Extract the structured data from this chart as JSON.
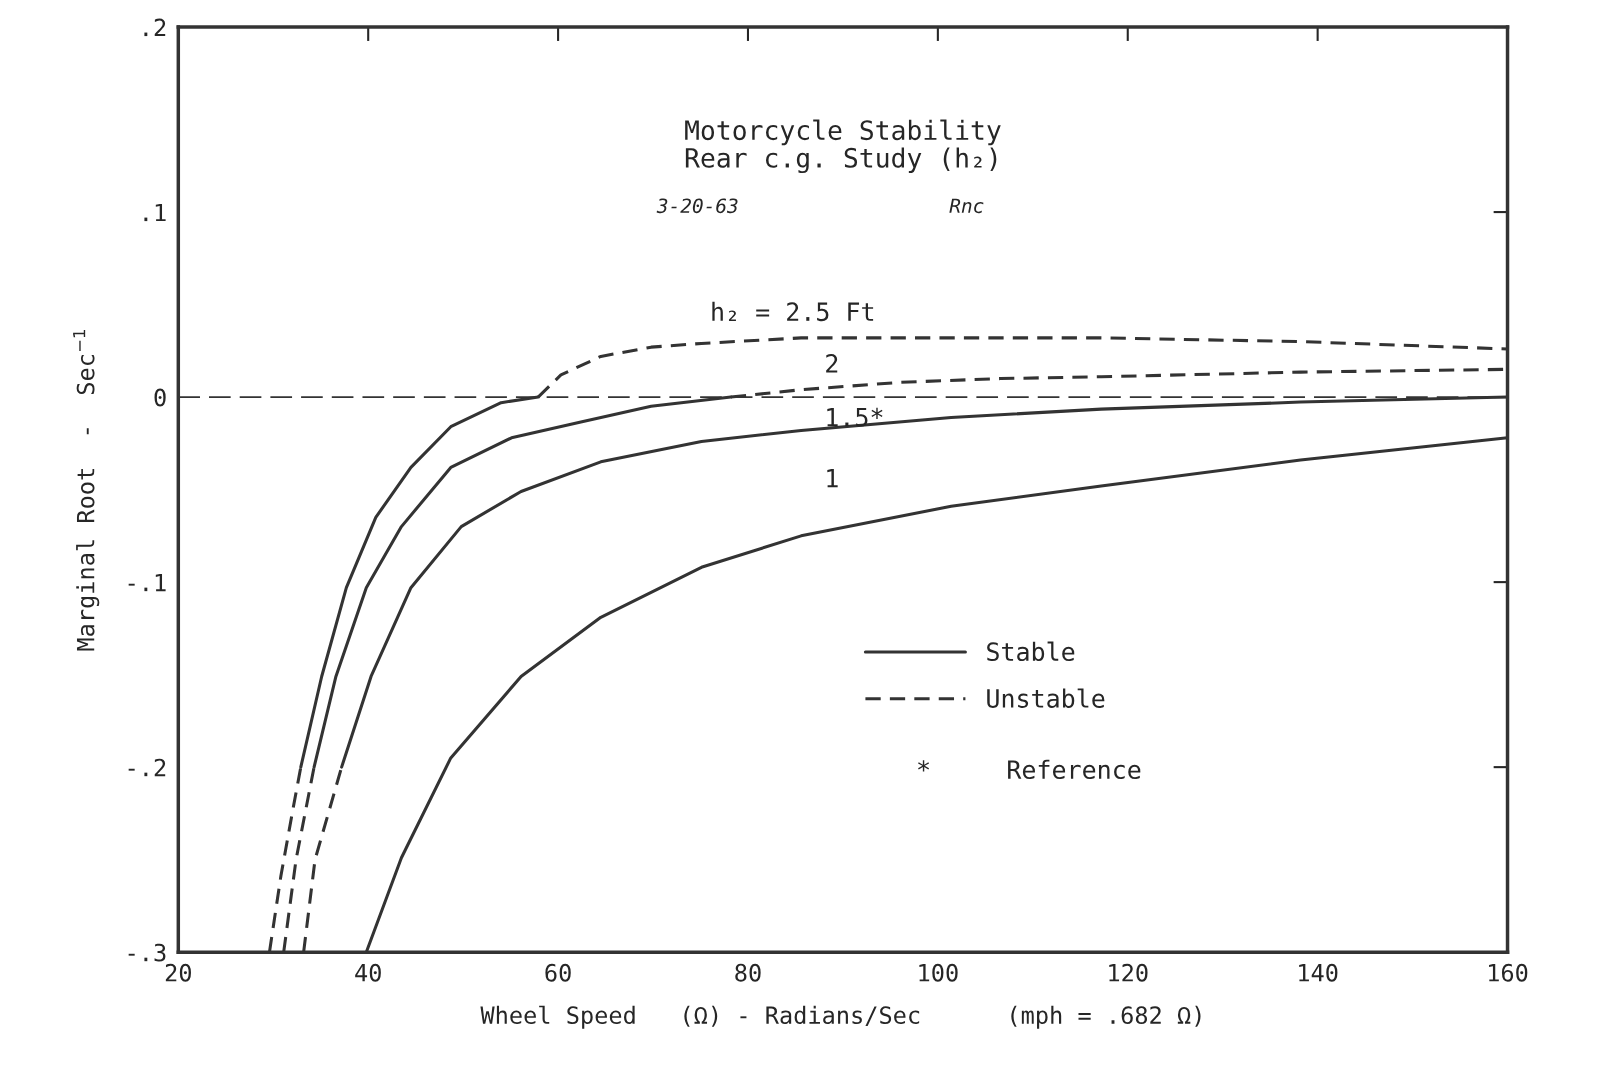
{
  "chart_data": {
    "type": "line",
    "title": "Motorcycle Stability\nRear c.g. Study (h₂)",
    "xlabel": "Wheel Speed   (Ω) - Radians/Sec      (mph = .682 Ω)",
    "ylabel": "Marginal Root  -  Sec$^{−1}$",
    "xlim": [
      20,
      160
    ],
    "ylim": [
      -0.3,
      0.2
    ],
    "xticks": [
      20,
      40,
      60,
      80,
      100,
      120,
      140,
      160
    ],
    "yticks": [
      {
        "value": -0.3,
        "label": "-.3"
      },
      {
        "value": -0.2,
        "label": "-.2"
      },
      {
        "value": -0.1,
        "label": "-.1"
      },
      {
        "value": 0,
        "label": "0"
      },
      {
        "value": 0.1,
        "label": ".1"
      },
      {
        "value": 0.2,
        "label": ".2"
      }
    ],
    "grid": false,
    "legend": "bottom right",
    "series": [
      {
        "color": "#333333",
        "line_style": "dashed",
        "x": [
          29.6,
          30.8,
          32.1,
          32.9
        ],
        "values": [
          -0.3,
          -0.259,
          -0.222,
          -0.2
        ]
      },
      {
        "name": "Stable",
        "color": "#333333",
        "line_style": "solid",
        "x": [
          32.9,
          35.1,
          37.7,
          40.8,
          44.5,
          48.7,
          54.0,
          57.9
        ],
        "values": [
          -0.2,
          -0.151,
          -0.103,
          -0.065,
          -0.038,
          -0.016,
          -0.003,
          0
        ]
      },
      {
        "name": "Unstable",
        "color": "#333333",
        "line_style": "dashed",
        "x": [
          57.9,
          60.3,
          64.5,
          69.8,
          75.1,
          85.6,
          101.4,
          117.2,
          138.2,
          160
        ],
        "values": [
          0,
          0.012,
          0.022,
          0.027,
          0.029,
          0.032,
          0.032,
          0.032,
          0.03,
          0.026
        ]
      },
      {
        "color": "#333333",
        "line_style": "dashed",
        "x": [
          31.1,
          32.4,
          34.3
        ],
        "values": [
          -0.3,
          -0.25,
          -0.2
        ]
      },
      {
        "color": "#333333",
        "line_style": "solid",
        "x": [
          34.3,
          36.6,
          39.8,
          43.5,
          48.7,
          55.1,
          62.4,
          69.8,
          78.2
        ],
        "values": [
          -0.2,
          -0.151,
          -0.103,
          -0.07,
          -0.038,
          -0.022,
          -0.0135,
          -0.005,
          0
        ]
      },
      {
        "color": "#333333",
        "line_style": "dashed",
        "x": [
          78.2,
          85.6,
          96.1,
          106.6,
          117.2,
          138.2,
          160
        ],
        "values": [
          0,
          0.004,
          0.008,
          0.01,
          0.011,
          0.0135,
          0.015
        ]
      },
      {
        "color": "#333333",
        "line_style": "dashed",
        "x": [
          33.2,
          34.4,
          37.2
        ],
        "values": [
          -0.3,
          -0.25,
          -0.2
        ]
      },
      {
        "color": "#333333",
        "line_style": "solid",
        "x": [
          37.2,
          40.3,
          44.5,
          49.8,
          56.1,
          64.5,
          75.1,
          85.6,
          101.4,
          117.2,
          138.2,
          160
        ],
        "values": [
          -0.2,
          -0.151,
          -0.103,
          -0.07,
          -0.051,
          -0.035,
          -0.024,
          -0.018,
          -0.011,
          -0.0065,
          -0.0027,
          0
        ]
      },
      {
        "color": "#333333",
        "line_style": "solid",
        "x": [
          39.8,
          43.5,
          48.7,
          56.1,
          64.5,
          75.1,
          85.6,
          101.4,
          117.2,
          138.2,
          160
        ],
        "values": [
          -0.3,
          -0.249,
          -0.195,
          -0.151,
          -0.119,
          -0.092,
          -0.075,
          -0.059,
          -0.048,
          -0.034,
          -0.022
        ]
      }
    ],
    "ref_lines": [
      {
        "axis": "y",
        "value": 0,
        "color": "#333333",
        "line_style": "dashed"
      }
    ],
    "annotations": [
      "h₂ = 2.5 Ft",
      "2",
      "1.5*",
      "1",
      "3-20-63",
      "Rnc",
      "*     Reference"
    ]
  }
}
